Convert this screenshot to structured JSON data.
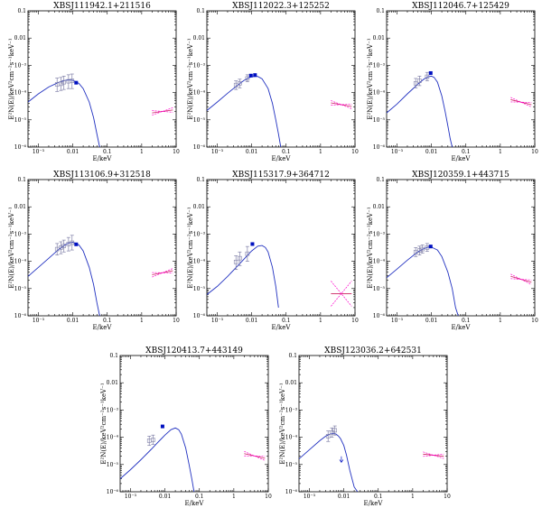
{
  "figure": {
    "colors": {
      "model": "#2030c0",
      "data": "#8080a8",
      "point": "#0010c0",
      "xray": "#ff00cc",
      "xray_line": "#cc2060",
      "axis": "#000000"
    }
  },
  "chart_data": [
    {
      "type": "scatter",
      "title": "XBSJ111942.1+211516",
      "xlabel": "E/keV",
      "ylabel": "E²N(E)/keV²cm⁻²s⁻¹keV⁻¹",
      "xscale": "log",
      "yscale": "log",
      "xlim": [
        0.0005,
        10
      ],
      "ylim": [
        1e-06,
        0.1
      ],
      "xticks": [
        "10⁻³",
        "0.01",
        "0.1",
        "1",
        "10"
      ],
      "yticks": [
        "10⁻⁶",
        "10⁻⁵",
        "10⁻⁴",
        "10⁻³",
        "0.01",
        "0.1"
      ],
      "model": {
        "x": [
          0.0005,
          0.001,
          0.002,
          0.004,
          0.006,
          0.008,
          0.01,
          0.015,
          0.02,
          0.03,
          0.04,
          0.05,
          0.06
        ],
        "y": [
          4.5e-05,
          9e-05,
          0.00016,
          0.00024,
          0.00028,
          0.00029,
          0.00028,
          0.00022,
          0.00014,
          4.5e-05,
          1.2e-05,
          3e-06,
          1e-06
        ]
      },
      "points": [
        {
          "x": 0.0035,
          "y": 0.0002,
          "ylo": 0.00011,
          "yhi": 0.00034
        },
        {
          "x": 0.0045,
          "y": 0.00021,
          "ylo": 0.00012,
          "yhi": 0.00036
        },
        {
          "x": 0.0055,
          "y": 0.00024,
          "ylo": 0.00013,
          "yhi": 0.0004
        },
        {
          "x": 0.0075,
          "y": 0.00026,
          "ylo": 0.00014,
          "yhi": 0.00045
        },
        {
          "x": 0.0095,
          "y": 0.00027,
          "ylo": 0.00014,
          "yhi": 0.00048
        }
      ],
      "filled": [
        {
          "x": 0.0125,
          "y": 0.00023
        }
      ],
      "xray": {
        "x": [
          2.0,
          8.0
        ],
        "y": [
          1.8e-05,
          2.3e-05
        ]
      }
    },
    {
      "type": "scatter",
      "title": "XBSJ112022.3+125252",
      "xlabel": "E/keV",
      "ylabel": "E²N(E)/keV²cm⁻²s⁻¹keV⁻¹",
      "xscale": "log",
      "yscale": "log",
      "xlim": [
        0.0005,
        10
      ],
      "ylim": [
        1e-06,
        0.1
      ],
      "xticks": [
        "10⁻³",
        "0.01",
        "0.1",
        "1",
        "10"
      ],
      "yticks": [
        "10⁻⁶",
        "10⁻⁵",
        "10⁻⁴",
        "10⁻³",
        "0.01",
        "0.1"
      ],
      "model": {
        "x": [
          0.0005,
          0.001,
          0.002,
          0.004,
          0.006,
          0.008,
          0.01,
          0.015,
          0.02,
          0.03,
          0.04,
          0.05,
          0.06,
          0.07
        ],
        "y": [
          2.2e-05,
          4.5e-05,
          9.5e-05,
          0.00019,
          0.00028,
          0.00034,
          0.00038,
          0.00039,
          0.00032,
          0.00014,
          4e-05,
          1e-05,
          3e-06,
          1e-06
        ]
      },
      "points": [
        {
          "x": 0.0035,
          "y": 0.00019,
          "ylo": 0.00013,
          "yhi": 0.00027
        },
        {
          "x": 0.0045,
          "y": 0.00022,
          "ylo": 0.00015,
          "yhi": 0.00031
        },
        {
          "x": 0.0075,
          "y": 0.00033,
          "ylo": 0.00025,
          "yhi": 0.00045
        }
      ],
      "filled": [
        {
          "x": 0.0095,
          "y": 0.00042
        },
        {
          "x": 0.0125,
          "y": 0.00044
        }
      ],
      "xray": {
        "x": [
          2.0,
          8.0
        ],
        "y": [
          4.2e-05,
          3.1e-05
        ]
      }
    },
    {
      "type": "scatter",
      "title": "XBSJ112046.7+125429",
      "xlabel": "E/keV",
      "ylabel": "E²N(E)/keV²cm⁻²s⁻¹keV⁻¹",
      "xscale": "log",
      "yscale": "log",
      "xlim": [
        0.0005,
        10
      ],
      "ylim": [
        1e-06,
        0.1
      ],
      "xticks": [
        "10⁻³",
        "0.01",
        "0.1",
        "1",
        "10"
      ],
      "yticks": [
        "10⁻⁶",
        "10⁻⁵",
        "10⁻⁴",
        "10⁻³",
        "0.01",
        "0.1"
      ],
      "model": {
        "x": [
          0.0005,
          0.001,
          0.002,
          0.004,
          0.006,
          0.008,
          0.01,
          0.012,
          0.015,
          0.02,
          0.025,
          0.03,
          0.035,
          0.04
        ],
        "y": [
          1.8e-05,
          3.8e-05,
          9e-05,
          0.0002,
          0.00031,
          0.00038,
          0.0004,
          0.00036,
          0.00024,
          7.5e-05,
          2e-05,
          6e-06,
          2e-06,
          1e-06
        ]
      },
      "points": [
        {
          "x": 0.0035,
          "y": 0.00022,
          "ylo": 0.00015,
          "yhi": 0.00033
        },
        {
          "x": 0.0045,
          "y": 0.00027,
          "ylo": 0.00018,
          "yhi": 0.0004
        },
        {
          "x": 0.0075,
          "y": 0.00038,
          "ylo": 0.00027,
          "yhi": 0.00055
        }
      ],
      "filled": [
        {
          "x": 0.0095,
          "y": 0.00052
        }
      ],
      "xray": {
        "x": [
          2.0,
          8.0
        ],
        "y": [
          5.5e-05,
          3.6e-05
        ]
      }
    },
    {
      "type": "scatter",
      "title": "XBSJ113106.9+312518",
      "xlabel": "E/keV",
      "ylabel": "E²N(E)/keV²cm⁻²s⁻¹keV⁻¹",
      "xscale": "log",
      "yscale": "log",
      "xlim": [
        0.0005,
        10
      ],
      "ylim": [
        1e-06,
        0.1
      ],
      "xticks": [
        "10⁻³",
        "0.01",
        "0.1",
        "1",
        "10"
      ],
      "yticks": [
        "10⁻⁶",
        "10⁻⁵",
        "10⁻⁴",
        "10⁻³",
        "0.01",
        "0.1"
      ],
      "model": {
        "x": [
          0.0005,
          0.001,
          0.002,
          0.004,
          0.006,
          0.008,
          0.01,
          0.015,
          0.02,
          0.03,
          0.04,
          0.05,
          0.06
        ],
        "y": [
          2.8e-05,
          6e-05,
          0.00013,
          0.00028,
          0.0004,
          0.00048,
          0.0005,
          0.0004,
          0.00024,
          6e-05,
          1.4e-05,
          3e-06,
          1e-06
        ]
      },
      "points": [
        {
          "x": 0.0035,
          "y": 0.00028,
          "ylo": 0.00017,
          "yhi": 0.00045
        },
        {
          "x": 0.0045,
          "y": 0.00032,
          "ylo": 0.00019,
          "yhi": 0.00052
        },
        {
          "x": 0.0055,
          "y": 0.00037,
          "ylo": 0.00022,
          "yhi": 0.0006
        },
        {
          "x": 0.0075,
          "y": 0.00043,
          "ylo": 0.00024,
          "yhi": 0.00075
        },
        {
          "x": 0.0095,
          "y": 0.00048,
          "ylo": 0.00026,
          "yhi": 0.0009
        }
      ],
      "filled": [
        {
          "x": 0.0125,
          "y": 0.00042
        }
      ],
      "xray": {
        "x": [
          2.0,
          8.0
        ],
        "y": [
          3.2e-05,
          4.5e-05
        ]
      }
    },
    {
      "type": "scatter",
      "title": "XBSJ115317.9+364712",
      "xlabel": "E/keV",
      "ylabel": "E²N(E)/keV²cm⁻²s⁻¹keV⁻¹",
      "xscale": "log",
      "yscale": "log",
      "xlim": [
        0.0005,
        10
      ],
      "ylim": [
        1e-06,
        0.1
      ],
      "xticks": [
        "10⁻³",
        "0.01",
        "0.1",
        "1",
        "10"
      ],
      "yticks": [
        "10⁻⁶",
        "10⁻⁵",
        "10⁻⁴",
        "10⁻³",
        "0.01",
        "0.1"
      ],
      "model": {
        "x": [
          0.0005,
          0.001,
          0.002,
          0.004,
          0.006,
          0.008,
          0.01,
          0.015,
          0.02,
          0.025,
          0.03,
          0.04,
          0.05,
          0.06
        ],
        "y": [
          6e-06,
          1.2e-05,
          2.8e-05,
          7e-05,
          0.00012,
          0.00018,
          0.00024,
          0.00036,
          0.00038,
          0.00032,
          0.00022,
          6e-05,
          1.2e-05,
          2e-06
        ]
      },
      "points": [
        {
          "x": 0.0035,
          "y": 9.5e-05,
          "ylo": 5e-05,
          "yhi": 0.00016
        },
        {
          "x": 0.0045,
          "y": 0.00013,
          "ylo": 7e-05,
          "yhi": 0.00022
        },
        {
          "x": 0.0075,
          "y": 0.00019,
          "ylo": 0.0001,
          "yhi": 0.00035
        }
      ],
      "filled": [
        {
          "x": 0.0105,
          "y": 0.00043
        }
      ],
      "xray": {
        "x": [
          2.0,
          8.0
        ],
        "y": [
          6.5e-06,
          6.5e-06
        ]
      }
    },
    {
      "type": "scatter",
      "title": "XBSJ120359.1+443715",
      "xlabel": "E/keV",
      "ylabel": "E²N(E)/keV²cm⁻²s⁻¹keV⁻¹",
      "xscale": "log",
      "yscale": "log",
      "xlim": [
        0.0005,
        10
      ],
      "ylim": [
        1e-06,
        0.1
      ],
      "xticks": [
        "10⁻³",
        "0.01",
        "0.1",
        "1",
        "10"
      ],
      "yticks": [
        "10⁻⁶",
        "10⁻⁵",
        "10⁻⁴",
        "10⁻³",
        "0.01",
        "0.1"
      ],
      "model": {
        "x": [
          0.0005,
          0.001,
          0.002,
          0.004,
          0.006,
          0.008,
          0.01,
          0.015,
          0.02,
          0.03,
          0.04,
          0.05,
          0.06
        ],
        "y": [
          2.5e-05,
          5.2e-05,
          0.00011,
          0.00022,
          0.00029,
          0.00033,
          0.00033,
          0.00026,
          0.00015,
          4e-05,
          1e-05,
          2e-06,
          1e-06
        ]
      },
      "points": [
        {
          "x": 0.0035,
          "y": 0.00022,
          "ylo": 0.00015,
          "yhi": 0.00032
        },
        {
          "x": 0.0045,
          "y": 0.00025,
          "ylo": 0.00017,
          "yhi": 0.00036
        },
        {
          "x": 0.0055,
          "y": 0.00028,
          "ylo": 0.0002,
          "yhi": 0.0004
        },
        {
          "x": 0.0075,
          "y": 0.00032,
          "ylo": 0.00023,
          "yhi": 0.00045
        }
      ],
      "filled": [
        {
          "x": 0.0095,
          "y": 0.00035
        }
      ],
      "xray": {
        "x": [
          2.0,
          8.0
        ],
        "y": [
          2.8e-05,
          1.7e-05
        ]
      }
    },
    {
      "type": "scatter",
      "title": "XBSJ120413.7+443149",
      "xlabel": "E/keV",
      "ylabel": "E²N(E)/keV²cm⁻²s⁻¹keV⁻¹",
      "xscale": "log",
      "yscale": "log",
      "xlim": [
        0.0005,
        10
      ],
      "ylim": [
        1e-06,
        0.1
      ],
      "xticks": [
        "10⁻³",
        "0.01",
        "0.1",
        "1",
        "10"
      ],
      "yticks": [
        "10⁻⁶",
        "10⁻⁵",
        "10⁻⁴",
        "10⁻³",
        "0.01",
        "0.1"
      ],
      "model": {
        "x": [
          0.0005,
          0.001,
          0.002,
          0.004,
          0.006,
          0.008,
          0.01,
          0.015,
          0.02,
          0.025,
          0.03,
          0.04,
          0.05,
          0.06,
          0.07
        ],
        "y": [
          3e-06,
          6.5e-06,
          1.5e-05,
          3.6e-05,
          6.2e-05,
          9e-05,
          0.00012,
          0.00019,
          0.00022,
          0.00019,
          0.00013,
          4e-05,
          1e-05,
          3e-06,
          1e-06
        ]
      },
      "points": [
        {
          "x": 0.0035,
          "y": 7.5e-05,
          "ylo": 5e-05,
          "yhi": 0.00011
        },
        {
          "x": 0.0045,
          "y": 8e-05,
          "ylo": 5.5e-05,
          "yhi": 0.00012
        }
      ],
      "filled": [
        {
          "x": 0.0085,
          "y": 0.00025
        }
      ],
      "xray": {
        "x": [
          2.0,
          8.0
        ],
        "y": [
          2.5e-05,
          1.7e-05
        ]
      }
    },
    {
      "type": "scatter",
      "title": "XBSJ123036.2+642531",
      "xlabel": "E/keV",
      "ylabel": "E²N(E)/keV²cm⁻²s⁻¹keV⁻¹",
      "xscale": "log",
      "yscale": "log",
      "xlim": [
        0.0005,
        10
      ],
      "ylim": [
        1e-06,
        0.1
      ],
      "xticks": [
        "10⁻³",
        "0.01",
        "0.1",
        "1",
        "10"
      ],
      "yticks": [
        "10⁻⁶",
        "10⁻⁵",
        "10⁻⁴",
        "10⁻³",
        "0.01",
        "0.1"
      ],
      "model": {
        "x": [
          0.0005,
          0.001,
          0.002,
          0.003,
          0.004,
          0.005,
          0.006,
          0.007,
          0.008,
          0.01,
          0.012,
          0.015,
          0.02,
          0.025
        ],
        "y": [
          1.6e-05,
          3.5e-05,
          7.5e-05,
          0.00011,
          0.00013,
          0.00014,
          0.00013,
          0.00011,
          9e-05,
          5e-05,
          2.2e-05,
          6e-06,
          1.5e-06,
          1e-06
        ]
      },
      "points": [
        {
          "x": 0.0035,
          "y": 0.00011,
          "ylo": 7e-05,
          "yhi": 0.00017
        },
        {
          "x": 0.0045,
          "y": 0.00015,
          "ylo": 0.0001,
          "yhi": 0.00022
        },
        {
          "x": 0.0055,
          "y": 0.00018,
          "ylo": 0.00012,
          "yhi": 0.00026
        }
      ],
      "filled": [],
      "upper_limit": {
        "x": 0.0085,
        "y": 2e-05,
        "ylo": 1.2e-05
      },
      "xray": {
        "x": [
          2.0,
          8.0
        ],
        "y": [
          2.4e-05,
          2e-05
        ]
      }
    }
  ]
}
